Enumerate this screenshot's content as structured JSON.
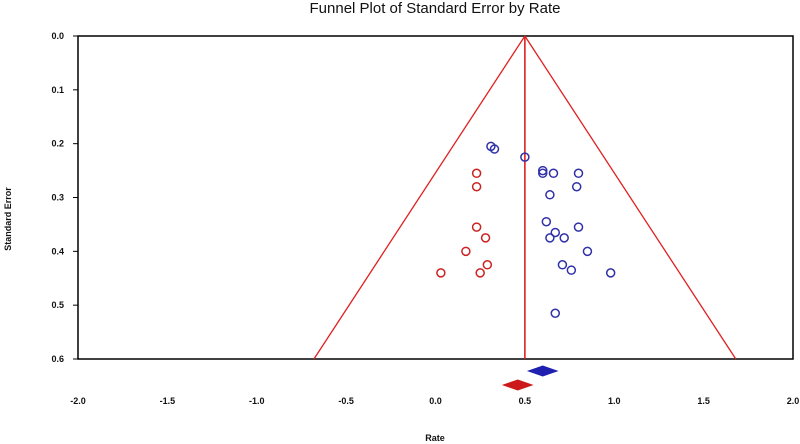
{
  "chart_data": {
    "type": "scatter",
    "title": "Funnel Plot of Standard Error by Rate",
    "xlabel": "Rate",
    "ylabel": "Standard Error",
    "xlim": [
      -2.0,
      2.0
    ],
    "ylim": [
      0.0,
      0.6
    ],
    "y_inverted": true,
    "x_ticks": [
      "-2.0",
      "-1.5",
      "-1.0",
      "-0.5",
      "0.0",
      "0.5",
      "1.0",
      "1.5",
      "2.0"
    ],
    "y_ticks": [
      "0.0",
      "0.1",
      "0.2",
      "0.3",
      "0.4",
      "0.5",
      "0.6"
    ],
    "grid": false,
    "legend": "none",
    "summary_line_x": 0.5,
    "funnel": {
      "apex": [
        0.5,
        0.0
      ],
      "left_base": [
        -0.68,
        0.6
      ],
      "right_base": [
        1.68,
        0.6
      ]
    },
    "series": [
      {
        "color": "#3030a8",
        "marker": "open-circle",
        "points": [
          [
            0.31,
            0.205
          ],
          [
            0.33,
            0.21
          ],
          [
            0.5,
            0.225
          ],
          [
            0.6,
            0.25
          ],
          [
            0.6,
            0.255
          ],
          [
            0.66,
            0.255
          ],
          [
            0.8,
            0.255
          ],
          [
            0.79,
            0.28
          ],
          [
            0.64,
            0.295
          ],
          [
            0.62,
            0.345
          ],
          [
            0.8,
            0.355
          ],
          [
            0.64,
            0.375
          ],
          [
            0.67,
            0.365
          ],
          [
            0.72,
            0.375
          ],
          [
            0.85,
            0.4
          ],
          [
            0.71,
            0.425
          ],
          [
            0.76,
            0.435
          ],
          [
            0.98,
            0.44
          ],
          [
            0.67,
            0.515
          ]
        ]
      },
      {
        "color": "#cc2222",
        "marker": "open-circle",
        "points": [
          [
            0.23,
            0.255
          ],
          [
            0.23,
            0.28
          ],
          [
            0.23,
            0.355
          ],
          [
            0.28,
            0.375
          ],
          [
            0.17,
            0.4
          ],
          [
            0.29,
            0.425
          ],
          [
            0.25,
            0.44
          ],
          [
            0.03,
            0.44
          ]
        ]
      }
    ],
    "summary_diamonds": [
      {
        "color": "#2020b0",
        "center": 0.6,
        "low": 0.52,
        "high": 0.68
      },
      {
        "color": "#cc1a1a",
        "center": 0.46,
        "low": 0.38,
        "high": 0.54
      }
    ]
  }
}
